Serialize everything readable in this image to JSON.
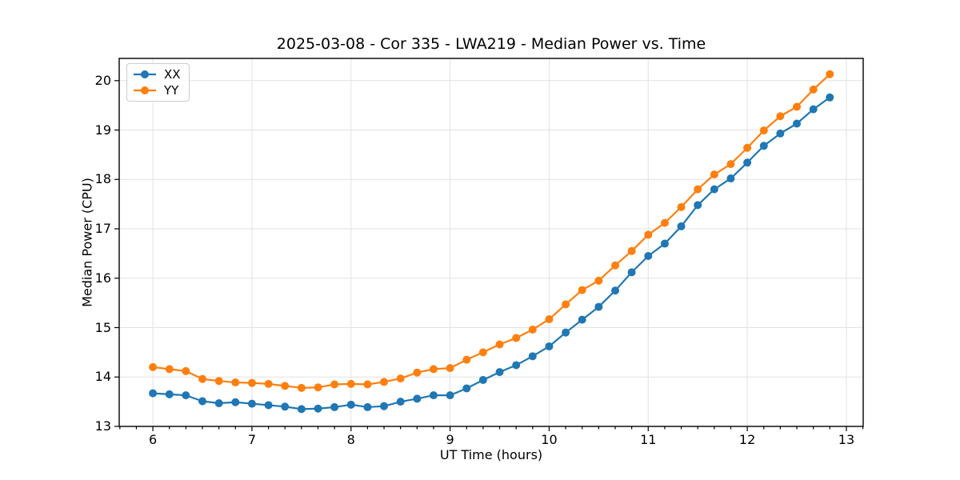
{
  "chart_data": {
    "type": "line",
    "title": "2025-03-08 - Cor 335 - LWA219 - Median Power vs. Time",
    "xlabel": "UT Time (hours)",
    "ylabel": "Median Power (CPU)",
    "grid": true,
    "legend_position": "upper-left",
    "marker": "o",
    "xlim": [
      5.66,
      13.17
    ],
    "ylim": [
      13.0,
      20.45
    ],
    "xticks": [
      6,
      7,
      8,
      9,
      10,
      11,
      12,
      13
    ],
    "yticks": [
      13,
      14,
      15,
      16,
      17,
      18,
      19,
      20
    ],
    "x_minor_tick_interval": 0.1667,
    "x": [
      6.0,
      6.167,
      6.333,
      6.5,
      6.667,
      6.833,
      7.0,
      7.167,
      7.333,
      7.5,
      7.667,
      7.833,
      8.0,
      8.167,
      8.333,
      8.5,
      8.667,
      8.833,
      9.0,
      9.167,
      9.333,
      9.5,
      9.667,
      9.833,
      10.0,
      10.167,
      10.333,
      10.5,
      10.667,
      10.833,
      11.0,
      11.167,
      11.333,
      11.5,
      11.667,
      11.833,
      12.0,
      12.167,
      12.333,
      12.5,
      12.667,
      12.833
    ],
    "series": [
      {
        "name": "XX",
        "color": "#1f77b4",
        "values": [
          13.67,
          13.65,
          13.63,
          13.51,
          13.47,
          13.49,
          13.46,
          13.43,
          13.4,
          13.35,
          13.36,
          13.39,
          13.44,
          13.39,
          13.41,
          13.5,
          13.56,
          13.63,
          13.63,
          13.77,
          13.94,
          14.1,
          14.24,
          14.42,
          14.62,
          14.9,
          15.16,
          15.42,
          15.75,
          16.12,
          16.45,
          16.7,
          17.05,
          17.48,
          17.8,
          18.02,
          18.34,
          18.68,
          18.93,
          19.13,
          19.42,
          19.66
        ]
      },
      {
        "name": "YY",
        "color": "#ff7f0e",
        "values": [
          14.2,
          14.16,
          14.12,
          13.96,
          13.92,
          13.89,
          13.88,
          13.86,
          13.82,
          13.78,
          13.79,
          13.85,
          13.86,
          13.85,
          13.9,
          13.97,
          14.09,
          14.16,
          14.18,
          14.35,
          14.5,
          14.66,
          14.79,
          14.96,
          15.17,
          15.47,
          15.76,
          15.95,
          16.26,
          16.55,
          16.88,
          17.12,
          17.44,
          17.8,
          18.1,
          18.31,
          18.64,
          18.99,
          19.28,
          19.47,
          19.82,
          20.13
        ]
      }
    ]
  },
  "colors": {
    "background": "#ffffff",
    "grid": "#e2e2e2",
    "spine": "#000000",
    "text": "#000000",
    "legend_border": "#cccccc"
  }
}
